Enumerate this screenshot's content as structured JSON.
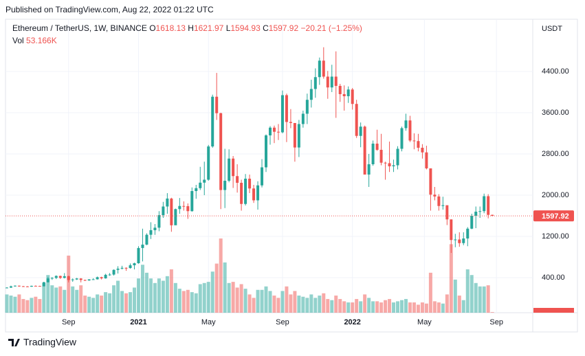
{
  "chart_data": {
    "type": "candlestick",
    "published": "Published on TradingView.com, Aug 22, 2022 01:22 UTC",
    "symbol": "Ethereum / TetherUS, 1W, BINANCE",
    "ohlc_letters": [
      "O",
      "H",
      "L",
      "C"
    ],
    "change": "−20.21 (−1.25%)",
    "volume_title": "Vol",
    "volume_label": "53.166K",
    "y_axis_unit": "USDT",
    "brand": "TradingView",
    "up_color": "#26a69a",
    "down_color": "#ef5350",
    "grid": true,
    "ylim": [
      -280,
      5413
    ],
    "yticks": [
      {
        "value": 400,
        "label": "400.00"
      },
      {
        "value": 1200,
        "label": "1200.00"
      },
      {
        "value": 2000,
        "label": "2000.00"
      },
      {
        "value": 2800,
        "label": "2800.00"
      },
      {
        "value": 3600,
        "label": "3600.00"
      },
      {
        "value": 4400,
        "label": "4400.00"
      }
    ],
    "xlim": [
      -0.33,
      127.83
    ],
    "xticks": [
      {
        "value": 15,
        "label": "Sep"
      },
      {
        "value": 32,
        "label": "2021"
      },
      {
        "value": 49,
        "label": "May"
      },
      {
        "value": 67,
        "label": "Sep"
      },
      {
        "value": 84,
        "label": "2022"
      },
      {
        "value": 101.5,
        "label": "May"
      },
      {
        "value": 119,
        "label": "Sep"
      }
    ],
    "open": [
      200,
      207,
      231,
      244,
      233,
      229,
      225,
      241,
      239,
      232,
      311,
      385,
      395,
      433,
      395,
      428,
      353,
      365,
      384,
      355,
      346,
      366,
      368,
      409,
      386,
      455,
      460,
      551,
      575,
      590,
      586,
      640,
      680,
      975,
      1041,
      1232,
      1321,
      1369,
      1613,
      1780,
      1935,
      1416,
      1730,
      1790,
      1787,
      1690,
      2080,
      2136,
      2243,
      2300,
      2945,
      3910,
      3590,
      2100,
      2280,
      2710,
      2370,
      2240,
      1830,
      2320,
      2130,
      1900,
      2190,
      2540,
      3160,
      3310,
      3230,
      3220,
      3940,
      3420,
      3400,
      2925,
      3380,
      3580,
      3850,
      4060,
      4290,
      4610,
      4300,
      4090,
      4300,
      4120,
      3960,
      3920,
      4050,
      3770,
      3150,
      3330,
      2400,
      2600,
      3000,
      2880,
      2630,
      2620,
      2560,
      2580,
      2900,
      3300,
      3450,
      3060,
      3050,
      2920,
      2830,
      2520,
      2010,
      1975,
      1790,
      1805,
      1530,
      1130,
      1140,
      1070,
      1160,
      1350,
      1600,
      1680,
      1690,
      1980,
      1618.13
    ],
    "high": [
      215,
      245,
      250,
      248,
      240,
      237,
      245,
      249,
      243,
      320,
      415,
      410,
      445,
      440,
      488,
      440,
      385,
      395,
      390,
      362,
      372,
      388,
      421,
      418,
      475,
      490,
      560,
      622,
      630,
      600,
      675,
      690,
      1010,
      1350,
      1260,
      1475,
      1440,
      1690,
      1870,
      2040,
      1950,
      1740,
      1945,
      1880,
      1840,
      2150,
      2200,
      2550,
      2650,
      2975,
      3950,
      4372,
      3600,
      2900,
      2890,
      2760,
      2600,
      2300,
      2410,
      2400,
      2200,
      2270,
      2700,
      3180,
      3340,
      3350,
      3380,
      4030,
      3970,
      3670,
      3390,
      3460,
      3640,
      3970,
      4240,
      4460,
      4670,
      4870,
      4410,
      4530,
      4790,
      4160,
      4130,
      4110,
      4080,
      3850,
      3410,
      3350,
      2800,
      3060,
      3270,
      3190,
      2650,
      3040,
      2690,
      2950,
      3330,
      3580,
      3540,
      3200,
      3190,
      2990,
      2960,
      2520,
      2160,
      2020,
      1970,
      1800,
      1530,
      1250,
      1280,
      1280,
      1380,
      1640,
      1780,
      1780,
      2030,
      2020,
      1621.97
    ],
    "low": [
      198,
      200,
      225,
      222,
      224,
      220,
      222,
      235,
      228,
      230,
      305,
      356,
      372,
      375,
      385,
      308,
      320,
      355,
      308,
      335,
      338,
      360,
      363,
      365,
      380,
      435,
      440,
      480,
      560,
      532,
      575,
      560,
      670,
      715,
      1030,
      1150,
      1230,
      1300,
      1560,
      1640,
      1290,
      1420,
      1640,
      1700,
      1540,
      1680,
      1930,
      2100,
      2000,
      2280,
      2920,
      3460,
      1730,
      1750,
      2250,
      2140,
      2050,
      1700,
      1800,
      2040,
      1850,
      1720,
      2150,
      2450,
      2980,
      3010,
      3070,
      3200,
      3030,
      3300,
      2650,
      2740,
      3310,
      3380,
      3700,
      3890,
      4140,
      4260,
      3870,
      4000,
      3500,
      3810,
      3640,
      3790,
      3660,
      3110,
      2930,
      2400,
      2160,
      2570,
      2860,
      2580,
      2300,
      2450,
      2450,
      2500,
      2850,
      3250,
      3030,
      2890,
      2850,
      2710,
      2500,
      1700,
      1900,
      1700,
      1720,
      1420,
      880,
      990,
      1000,
      1030,
      1010,
      1340,
      1360,
      1560,
      1650,
      1550,
      1594.93
    ],
    "close": [
      207,
      231,
      244,
      233,
      229,
      225,
      241,
      239,
      232,
      311,
      385,
      395,
      433,
      395,
      428,
      353,
      365,
      384,
      355,
      346,
      366,
      368,
      409,
      386,
      455,
      460,
      551,
      575,
      590,
      586,
      640,
      680,
      975,
      1041,
      1232,
      1321,
      1369,
      1613,
      1780,
      1935,
      1416,
      1730,
      1790,
      1787,
      1690,
      2080,
      2136,
      2243,
      2300,
      2945,
      3910,
      3590,
      2100,
      2280,
      2710,
      2370,
      2240,
      1830,
      2320,
      2130,
      1900,
      2190,
      2540,
      3160,
      3310,
      3230,
      3220,
      3940,
      3420,
      3400,
      2925,
      3380,
      3580,
      3850,
      4060,
      4290,
      4610,
      4300,
      4090,
      4300,
      4120,
      3960,
      3920,
      4050,
      3770,
      3150,
      3330,
      2400,
      2600,
      3000,
      2880,
      2630,
      2620,
      2560,
      2580,
      2900,
      3300,
      3450,
      3060,
      3050,
      2920,
      2830,
      2520,
      2010,
      1975,
      1790,
      1805,
      1530,
      1130,
      1140,
      1070,
      1160,
      1350,
      1600,
      1680,
      1690,
      1980,
      1618.13,
      1597.92
    ],
    "volume": [
      1600000,
      1500000,
      1400000,
      1600000,
      1200000,
      1100000,
      1300000,
      1400000,
      1200000,
      2600000,
      3300000,
      2400000,
      2200000,
      2300000,
      2000000,
      5000000,
      2300000,
      2000000,
      2400000,
      1500000,
      1400000,
      1300000,
      1600000,
      1500000,
      1800000,
      1700000,
      2400000,
      2800000,
      1900000,
      1700000,
      1800000,
      2200000,
      3000000,
      4200000,
      3500000,
      3000000,
      2600000,
      3000000,
      2800000,
      3200000,
      3800000,
      2600000,
      2100000,
      1900000,
      2000000,
      1800000,
      1700000,
      2500000,
      2600000,
      2700000,
      3600000,
      4300000,
      6500000,
      4400000,
      2600000,
      2700000,
      2200000,
      2500000,
      2100000,
      1600000,
      1300000,
      2000000,
      2000000,
      2300000,
      1900000,
      1500000,
      1300000,
      1900000,
      2300000,
      1600000,
      1900000,
      1500000,
      1400000,
      1300000,
      1600000,
      1300000,
      1500000,
      1700000,
      1200000,
      1100000,
      1500000,
      1200000,
      1000000,
      900000,
      900000,
      1200000,
      1000000,
      1600000,
      1300000,
      1000000,
      1000000,
      900000,
      1100000,
      1200000,
      900000,
      1000000,
      1100000,
      1200000,
      900000,
      900000,
      700000,
      900000,
      800000,
      3500000,
      1000000,
      900000,
      800000,
      1600000,
      6000000,
      2900000,
      1500000,
      1100000,
      3800000,
      3300000,
      2600000,
      2300000,
      2300000,
      2400000,
      53166
    ]
  }
}
